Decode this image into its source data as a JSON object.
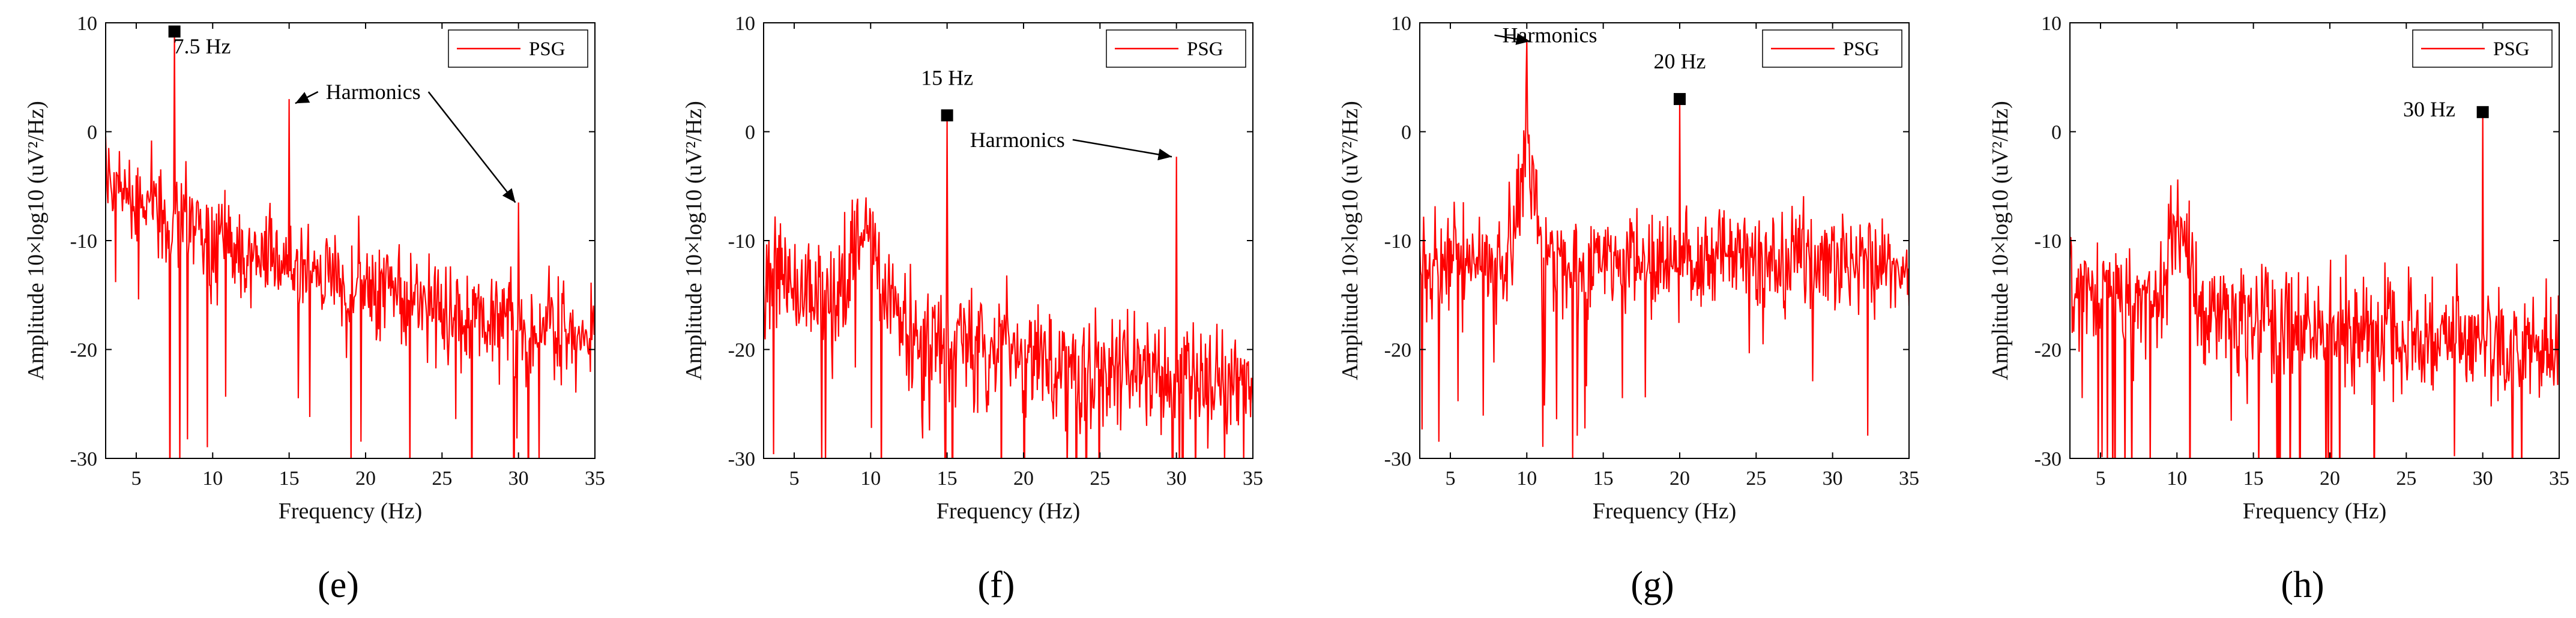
{
  "chart_data": [
    {
      "type": "line",
      "panel_label": "(e)",
      "series": [
        {
          "name": "PSG",
          "color": "#ff0000"
        }
      ],
      "legend_label": "PSG",
      "legend_position": "top-right",
      "xlabel": "Frequency (Hz)",
      "ylabel": "Amplitude 10×log10 (uV²/Hz)",
      "xlim": [
        3,
        35
      ],
      "ylim": [
        -30,
        10
      ],
      "xticks": [
        5,
        10,
        15,
        20,
        25,
        30,
        35
      ],
      "yticks": [
        -30,
        -20,
        -10,
        0,
        10
      ],
      "baseline": {
        "start": -3,
        "end": -19
      },
      "noise_amplitude": 6,
      "bumps": [],
      "peaks": [
        {
          "x": 7.5,
          "y": 9.2,
          "marker": true
        },
        {
          "x": 15,
          "y": 3.0,
          "marker": false
        },
        {
          "x": 30,
          "y": -6.5,
          "marker": false
        }
      ],
      "dips": [
        7.2
      ],
      "annotations": [
        {
          "text": "7.5 Hz",
          "x": 9.3,
          "y": 7.2
        },
        {
          "text": "Harmonics",
          "x": 20.5,
          "y": 3.0,
          "arrows": [
            [
              15.4,
              2.6
            ],
            [
              29.8,
              -6.5
            ]
          ]
        }
      ]
    },
    {
      "type": "line",
      "panel_label": "(f)",
      "series": [
        {
          "name": "PSG",
          "color": "#ff0000"
        }
      ],
      "legend_label": "PSG",
      "legend_position": "top-right",
      "xlabel": "Frequency (Hz)",
      "ylabel": "Amplitude 10×log10 (uV²/Hz)",
      "xlim": [
        3,
        35
      ],
      "ylim": [
        -30,
        10
      ],
      "xticks": [
        5,
        10,
        15,
        20,
        25,
        30,
        35
      ],
      "yticks": [
        -30,
        -20,
        -10,
        0,
        10
      ],
      "baseline": {
        "start": -12,
        "end": -24
      },
      "noise_amplitude": 7,
      "bumps": [
        {
          "x": 9.5,
          "height": 9,
          "width": 1.3
        }
      ],
      "peaks": [
        {
          "x": 15,
          "y": 1.5,
          "marker": true
        },
        {
          "x": 30,
          "y": -2.3,
          "marker": false
        }
      ],
      "dips": [],
      "annotations": [
        {
          "text": "15 Hz",
          "x": 15,
          "y": 4.3
        },
        {
          "text": "Harmonics",
          "x": 19.6,
          "y": -1.4,
          "arrows": [
            [
              29.7,
              -2.3
            ]
          ]
        }
      ]
    },
    {
      "type": "line",
      "panel_label": "(g)",
      "series": [
        {
          "name": "PSG",
          "color": "#ff0000"
        }
      ],
      "legend_label": "PSG",
      "legend_position": "top-right",
      "xlabel": "Frequency (Hz)",
      "ylabel": "Amplitude 10×log10 (uV²/Hz)",
      "xlim": [
        3,
        35
      ],
      "ylim": [
        -30,
        10
      ],
      "xticks": [
        5,
        10,
        15,
        20,
        25,
        30,
        35
      ],
      "yticks": [
        -30,
        -20,
        -10,
        0,
        10
      ],
      "baseline": {
        "start": -12,
        "end": -12
      },
      "noise_amplitude": 6,
      "bumps": [
        {
          "x": 10,
          "height": 10,
          "width": 0.8
        }
      ],
      "peaks": [
        {
          "x": 10,
          "y": 8.5,
          "marker": false
        },
        {
          "x": 20,
          "y": 3.0,
          "marker": true
        }
      ],
      "dips": [],
      "annotations": [
        {
          "text": "Harmonics",
          "x": 11.5,
          "y": 8.2,
          "arrows": [
            [
              10.2,
              8.3
            ]
          ]
        },
        {
          "text": "20 Hz",
          "x": 20,
          "y": 5.8
        }
      ]
    },
    {
      "type": "line",
      "panel_label": "(h)",
      "series": [
        {
          "name": "PSG",
          "color": "#ff0000"
        }
      ],
      "legend_label": "PSG",
      "legend_position": "top-right",
      "xlabel": "Frequency (Hz)",
      "ylabel": "Amplitude 10×log10 (uV²/Hz)",
      "xlim": [
        3,
        35
      ],
      "ylim": [
        -30,
        10
      ],
      "xticks": [
        5,
        10,
        15,
        20,
        25,
        30,
        35
      ],
      "yticks": [
        -30,
        -20,
        -10,
        0,
        10
      ],
      "baseline": {
        "start": -14,
        "end": -20
      },
      "noise_amplitude": 7,
      "bumps": [
        {
          "x": 10,
          "height": 9,
          "width": 0.9
        }
      ],
      "peaks": [
        {
          "x": 30,
          "y": 1.8,
          "marker": true
        }
      ],
      "dips": [],
      "annotations": [
        {
          "text": "30 Hz",
          "x": 26.5,
          "y": 1.4
        }
      ]
    }
  ]
}
